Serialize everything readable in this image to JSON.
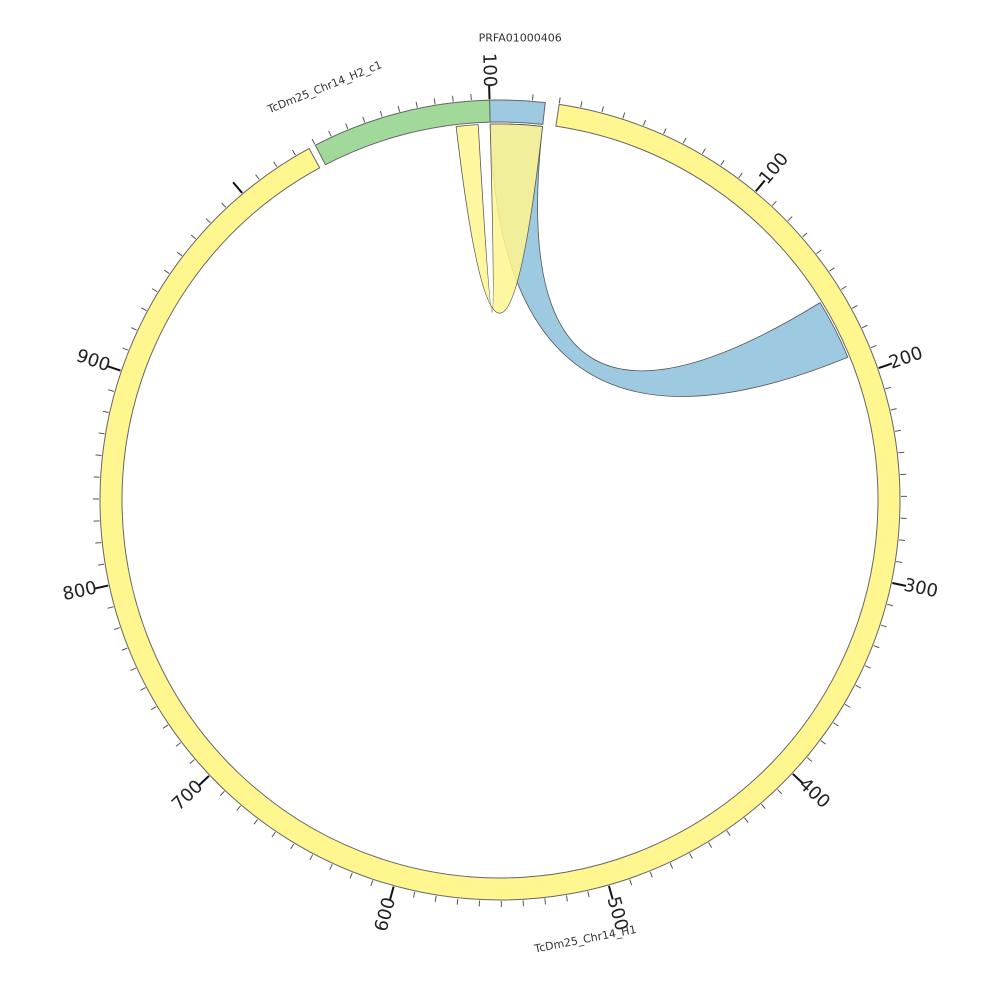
{
  "chart_data": {
    "type": "chord",
    "segments": [
      {
        "name": "PRFA01000406",
        "length": 13,
        "color": "#9ecae1",
        "tick_labels": []
      },
      {
        "name": "TcDm25_Chr14_H1",
        "length": 1037,
        "color": "#fff68f",
        "tick_labels": [
          "100",
          "200",
          "300",
          "400",
          "500",
          "600",
          "700",
          "800",
          "900"
        ]
      },
      {
        "name": "TcDm25_Chr14_H2_c1",
        "length": 100,
        "color": "#a1d99b",
        "tick_labels": [
          "100"
        ]
      }
    ],
    "links": [
      {
        "from": "PRFA01000406",
        "from_range": [
          0,
          13
        ],
        "to": "TcDm25_Chr14_H1",
        "to_range": [
          160,
          190
        ],
        "color": "#9ecae1"
      },
      {
        "from": "PRFA01000406",
        "from_range": [
          0,
          13
        ],
        "to": "TcDm25_Chr14_H2_c1",
        "to_range": [
          80,
          93
        ],
        "color": "#fff68f"
      }
    ]
  }
}
